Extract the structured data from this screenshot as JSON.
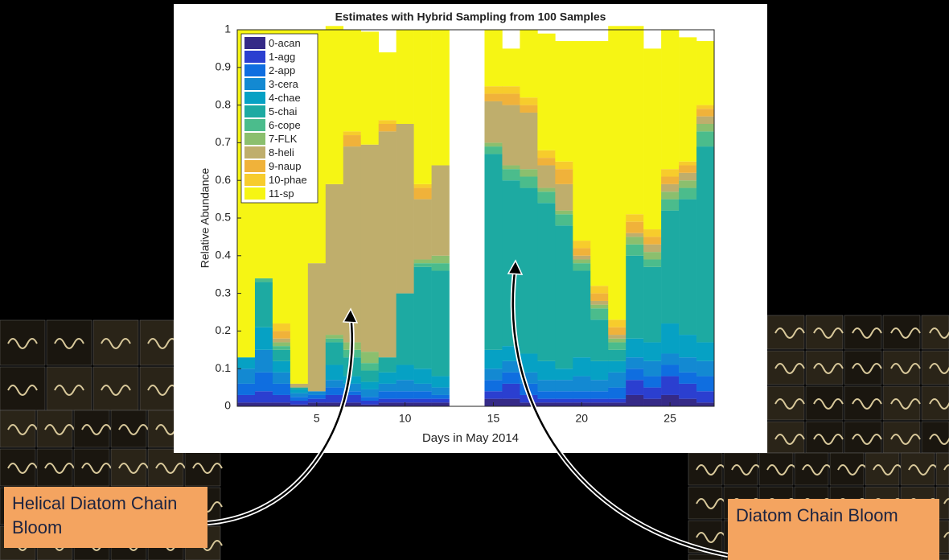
{
  "chart_data": {
    "type": "stacked_bar",
    "title": "Estimates with Hybrid Sampling from 100 Samples",
    "xlabel": "Days in May 2014",
    "ylabel": "Relative Abundance",
    "x": [
      1,
      2,
      3,
      4,
      5,
      6,
      7,
      8,
      9,
      10,
      11,
      12,
      13,
      14,
      15,
      16,
      17,
      18,
      19,
      20,
      21,
      22,
      23,
      24,
      25,
      26,
      27
    ],
    "xlim": [
      0.5,
      27.5
    ],
    "xticks": [
      5,
      10,
      15,
      20,
      25
    ],
    "ylim": [
      0,
      1
    ],
    "yticks": [
      0,
      0.1,
      0.2,
      0.3,
      0.4,
      0.5,
      0.6,
      0.7,
      0.8,
      0.9,
      1
    ],
    "grid": false,
    "legend": "upper left",
    "annotations": [
      "Helical Diatom Chain Bloom",
      "Diatom Chain Bloom"
    ],
    "series": [
      {
        "name": "0-acan",
        "color": "#352a87",
        "values": [
          0.01,
          0.01,
          0.01,
          0.005,
          0.01,
          0.01,
          0.01,
          0.005,
          0.01,
          0.01,
          0.01,
          0.01,
          null,
          null,
          0.02,
          0.02,
          0.01,
          0.01,
          0.01,
          0.01,
          0.01,
          0.01,
          0.03,
          0.02,
          0.03,
          0.02,
          0.01
        ]
      },
      {
        "name": "1-agg",
        "color": "#2b3fd0",
        "values": [
          0.02,
          0.03,
          0.02,
          0.01,
          0.01,
          0.02,
          0.02,
          0.01,
          0.01,
          0.01,
          0.01,
          0.01,
          null,
          null,
          0.02,
          0.04,
          0.02,
          0.01,
          0.01,
          0.01,
          0.01,
          0.01,
          0.04,
          0.03,
          0.05,
          0.04,
          0.03
        ]
      },
      {
        "name": "2-app",
        "color": "#0f6ee0",
        "values": [
          0.03,
          0.05,
          0.03,
          0.01,
          0.01,
          0.02,
          0.01,
          0.01,
          0.02,
          0.02,
          0.02,
          0.01,
          null,
          null,
          0.03,
          0.03,
          0.03,
          0.02,
          0.02,
          0.02,
          0.02,
          0.03,
          0.03,
          0.03,
          0.03,
          0.03,
          0.04
        ]
      },
      {
        "name": "3-cera",
        "color": "#1389d2",
        "values": [
          0.04,
          0.06,
          0.03,
          0.01,
          0.01,
          0.02,
          0.02,
          0.02,
          0.02,
          0.03,
          0.02,
          0.02,
          null,
          null,
          0.03,
          0.03,
          0.03,
          0.03,
          0.03,
          0.04,
          0.03,
          0.04,
          0.03,
          0.04,
          0.03,
          0.04,
          0.04
        ]
      },
      {
        "name": "4-chae",
        "color": "#06a1c4",
        "values": [
          0.03,
          0.06,
          0.03,
          0.01,
          0,
          0.04,
          0.02,
          0.02,
          0.03,
          0.04,
          0.04,
          0.03,
          null,
          null,
          0.05,
          0.04,
          0.05,
          0.05,
          0.03,
          0.05,
          0.05,
          0.03,
          0.05,
          0.05,
          0.08,
          0.06,
          0.05
        ]
      },
      {
        "name": "5-chai",
        "color": "#1daaa2",
        "values": [
          0,
          0.12,
          0.03,
          0.005,
          0,
          0.06,
          0.05,
          0.03,
          0.04,
          0.19,
          0.27,
          0.28,
          null,
          null,
          0.52,
          0.44,
          0.44,
          0.42,
          0.38,
          0.23,
          0.11,
          0.03,
          0.22,
          0.2,
          0.3,
          0.36,
          0.52
        ]
      },
      {
        "name": "6-cope",
        "color": "#4bbc8c",
        "values": [
          0,
          0.01,
          0.01,
          0,
          0,
          0.01,
          0.02,
          0.02,
          0,
          0,
          0.01,
          0.02,
          null,
          null,
          0.02,
          0.03,
          0.03,
          0.03,
          0.03,
          0.02,
          0.03,
          0.02,
          0.03,
          0.02,
          0.03,
          0.03,
          0.04
        ]
      },
      {
        "name": "7-FLK",
        "color": "#8bbf6e",
        "values": [
          0,
          0,
          0.01,
          0,
          0,
          0.01,
          0.02,
          0.03,
          0,
          0,
          0.01,
          0.02,
          null,
          null,
          0.01,
          0.01,
          0.02,
          0.01,
          0.01,
          0.01,
          0.01,
          0.01,
          0.02,
          0.02,
          0.02,
          0.02,
          0.02
        ]
      },
      {
        "name": "8-heli",
        "color": "#bfae6c",
        "values": [
          0,
          0,
          0.01,
          0.01,
          0.34,
          0.4,
          0.52,
          0.55,
          0.6,
          0.45,
          0.16,
          0.24,
          null,
          null,
          0.11,
          0.16,
          0.15,
          0.06,
          0.07,
          0.01,
          0.01,
          0.01,
          0.01,
          0.02,
          0.02,
          0.02,
          0.02
        ]
      },
      {
        "name": "9-naup",
        "color": "#f0b23a",
        "values": [
          0,
          0,
          0.02,
          0,
          0,
          0,
          0.03,
          0,
          0.02,
          0,
          0.03,
          0,
          null,
          null,
          0.02,
          0.03,
          0.02,
          0.02,
          0.04,
          0.02,
          0.02,
          0.02,
          0.03,
          0.02,
          0.02,
          0.02,
          0.02
        ]
      },
      {
        "name": "10-phae",
        "color": "#f7cc2c",
        "values": [
          0,
          0,
          0.02,
          0,
          0,
          0,
          0.01,
          0,
          0.01,
          0,
          0.01,
          0,
          null,
          null,
          0.02,
          0.02,
          0.02,
          0.02,
          0.02,
          0.02,
          0.02,
          0.02,
          0.02,
          0.02,
          0.02,
          0.01,
          0.01
        ]
      },
      {
        "name": "11-sp",
        "color": "#f6f514",
        "values": [
          0.87,
          0.66,
          0.78,
          0.94,
          0.62,
          0.42,
          0.27,
          0.3,
          0.18,
          0.25,
          0.41,
          0.36,
          null,
          null,
          0.15,
          0.1,
          0.18,
          0.31,
          0.32,
          0.53,
          0.65,
          0.78,
          0.5,
          0.48,
          0.37,
          0.33,
          0.17
        ]
      }
    ]
  }
}
